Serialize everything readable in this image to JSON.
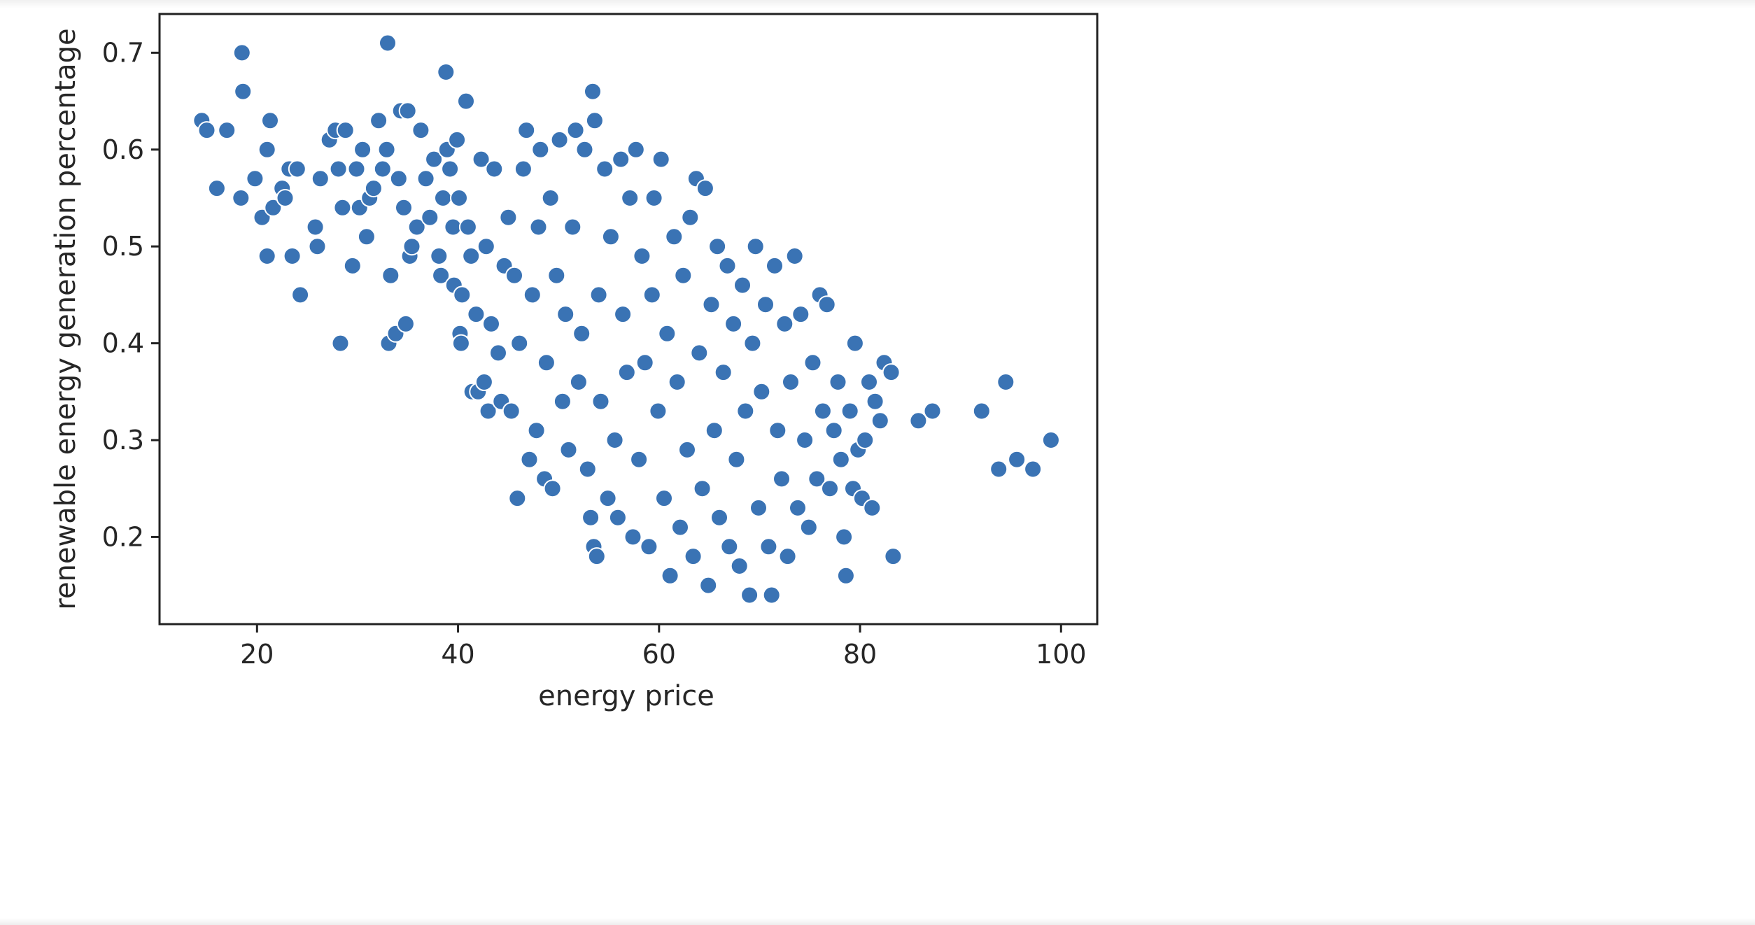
{
  "chart_data": {
    "type": "scatter",
    "xlabel": "energy price",
    "ylabel": "renewable energy generation percentage",
    "xlim": [
      10.3,
      103.6
    ],
    "ylim": [
      0.11,
      0.74
    ],
    "xticks": [
      20,
      40,
      60,
      80,
      100
    ],
    "yticks": [
      0.2,
      0.3,
      0.4,
      0.5,
      0.6,
      0.7
    ],
    "grid": false,
    "legend": "none",
    "marker_color": "#3a73b4",
    "edge_color": "#ffffff",
    "points": [
      [
        14.5,
        0.63
      ],
      [
        15.0,
        0.62
      ],
      [
        16.0,
        0.56
      ],
      [
        17.0,
        0.62
      ],
      [
        18.5,
        0.7
      ],
      [
        18.6,
        0.66
      ],
      [
        18.4,
        0.55
      ],
      [
        19.8,
        0.57
      ],
      [
        20.5,
        0.53
      ],
      [
        21.0,
        0.6
      ],
      [
        21.3,
        0.63
      ],
      [
        21.6,
        0.54
      ],
      [
        21.0,
        0.49
      ],
      [
        22.5,
        0.56
      ],
      [
        22.8,
        0.55
      ],
      [
        23.2,
        0.58
      ],
      [
        23.5,
        0.49
      ],
      [
        24.0,
        0.58
      ],
      [
        24.3,
        0.45
      ],
      [
        25.8,
        0.52
      ],
      [
        26.0,
        0.5
      ],
      [
        26.3,
        0.57
      ],
      [
        27.2,
        0.61
      ],
      [
        27.8,
        0.62
      ],
      [
        28.1,
        0.58
      ],
      [
        28.5,
        0.54
      ],
      [
        28.8,
        0.62
      ],
      [
        28.3,
        0.4
      ],
      [
        29.5,
        0.48
      ],
      [
        29.9,
        0.58
      ],
      [
        30.2,
        0.54
      ],
      [
        30.5,
        0.6
      ],
      [
        30.9,
        0.51
      ],
      [
        31.2,
        0.55
      ],
      [
        31.6,
        0.56
      ],
      [
        32.1,
        0.63
      ],
      [
        32.5,
        0.58
      ],
      [
        32.9,
        0.6
      ],
      [
        33.0,
        0.71
      ],
      [
        33.3,
        0.47
      ],
      [
        33.1,
        0.4
      ],
      [
        33.8,
        0.41
      ],
      [
        34.1,
        0.57
      ],
      [
        34.3,
        0.64
      ],
      [
        34.6,
        0.54
      ],
      [
        34.8,
        0.42
      ],
      [
        35.0,
        0.64
      ],
      [
        35.2,
        0.49
      ],
      [
        35.4,
        0.5
      ],
      [
        35.9,
        0.52
      ],
      [
        36.3,
        0.62
      ],
      [
        36.8,
        0.57
      ],
      [
        37.2,
        0.53
      ],
      [
        37.6,
        0.59
      ],
      [
        38.1,
        0.49
      ],
      [
        38.3,
        0.47
      ],
      [
        38.5,
        0.55
      ],
      [
        38.9,
        0.6
      ],
      [
        38.8,
        0.68
      ],
      [
        39.2,
        0.58
      ],
      [
        39.5,
        0.52
      ],
      [
        39.6,
        0.46
      ],
      [
        39.9,
        0.61
      ],
      [
        40.1,
        0.55
      ],
      [
        40.2,
        0.41
      ],
      [
        40.3,
        0.4
      ],
      [
        40.4,
        0.45
      ],
      [
        40.8,
        0.65
      ],
      [
        41.0,
        0.52
      ],
      [
        41.3,
        0.49
      ],
      [
        41.4,
        0.35
      ],
      [
        41.8,
        0.43
      ],
      [
        42.0,
        0.35
      ],
      [
        42.3,
        0.59
      ],
      [
        42.6,
        0.36
      ],
      [
        42.8,
        0.5
      ],
      [
        43.0,
        0.33
      ],
      [
        43.3,
        0.42
      ],
      [
        43.6,
        0.58
      ],
      [
        44.0,
        0.39
      ],
      [
        44.3,
        0.34
      ],
      [
        44.6,
        0.48
      ],
      [
        45.0,
        0.53
      ],
      [
        45.3,
        0.33
      ],
      [
        45.6,
        0.47
      ],
      [
        45.9,
        0.24
      ],
      [
        46.1,
        0.4
      ],
      [
        46.5,
        0.58
      ],
      [
        46.8,
        0.62
      ],
      [
        47.1,
        0.28
      ],
      [
        47.4,
        0.45
      ],
      [
        47.8,
        0.31
      ],
      [
        48.0,
        0.52
      ],
      [
        48.2,
        0.6
      ],
      [
        48.6,
        0.26
      ],
      [
        48.8,
        0.38
      ],
      [
        49.2,
        0.55
      ],
      [
        49.4,
        0.25
      ],
      [
        49.8,
        0.47
      ],
      [
        50.1,
        0.61
      ],
      [
        50.4,
        0.34
      ],
      [
        50.7,
        0.43
      ],
      [
        51.0,
        0.29
      ],
      [
        51.4,
        0.52
      ],
      [
        51.7,
        0.62
      ],
      [
        52.0,
        0.36
      ],
      [
        52.3,
        0.41
      ],
      [
        52.6,
        0.6
      ],
      [
        52.9,
        0.27
      ],
      [
        53.2,
        0.22
      ],
      [
        53.4,
        0.66
      ],
      [
        53.5,
        0.19
      ],
      [
        53.6,
        0.63
      ],
      [
        53.8,
        0.18
      ],
      [
        54.0,
        0.45
      ],
      [
        54.2,
        0.34
      ],
      [
        54.6,
        0.58
      ],
      [
        54.9,
        0.24
      ],
      [
        55.2,
        0.51
      ],
      [
        55.6,
        0.3
      ],
      [
        55.9,
        0.22
      ],
      [
        56.2,
        0.59
      ],
      [
        56.4,
        0.43
      ],
      [
        56.8,
        0.37
      ],
      [
        57.1,
        0.55
      ],
      [
        57.4,
        0.2
      ],
      [
        57.7,
        0.6
      ],
      [
        58.0,
        0.28
      ],
      [
        58.3,
        0.49
      ],
      [
        58.6,
        0.38
      ],
      [
        59.0,
        0.19
      ],
      [
        59.3,
        0.45
      ],
      [
        59.5,
        0.55
      ],
      [
        59.9,
        0.33
      ],
      [
        60.2,
        0.59
      ],
      [
        60.5,
        0.24
      ],
      [
        60.8,
        0.41
      ],
      [
        61.1,
        0.16
      ],
      [
        61.5,
        0.51
      ],
      [
        61.8,
        0.36
      ],
      [
        62.1,
        0.21
      ],
      [
        62.4,
        0.47
      ],
      [
        62.8,
        0.29
      ],
      [
        63.1,
        0.53
      ],
      [
        63.4,
        0.18
      ],
      [
        63.7,
        0.57
      ],
      [
        64.0,
        0.39
      ],
      [
        64.3,
        0.25
      ],
      [
        64.6,
        0.56
      ],
      [
        64.9,
        0.15
      ],
      [
        65.2,
        0.44
      ],
      [
        65.5,
        0.31
      ],
      [
        65.8,
        0.5
      ],
      [
        66.0,
        0.22
      ],
      [
        66.4,
        0.37
      ],
      [
        66.8,
        0.48
      ],
      [
        67.0,
        0.19
      ],
      [
        67.4,
        0.42
      ],
      [
        67.7,
        0.28
      ],
      [
        68.0,
        0.17
      ],
      [
        68.3,
        0.46
      ],
      [
        68.6,
        0.33
      ],
      [
        69.0,
        0.14
      ],
      [
        69.3,
        0.4
      ],
      [
        69.6,
        0.5
      ],
      [
        69.9,
        0.23
      ],
      [
        70.2,
        0.35
      ],
      [
        70.6,
        0.44
      ],
      [
        70.9,
        0.19
      ],
      [
        71.2,
        0.14
      ],
      [
        71.5,
        0.48
      ],
      [
        71.8,
        0.31
      ],
      [
        72.2,
        0.26
      ],
      [
        72.5,
        0.42
      ],
      [
        72.8,
        0.18
      ],
      [
        73.1,
        0.36
      ],
      [
        73.5,
        0.49
      ],
      [
        73.8,
        0.23
      ],
      [
        74.1,
        0.43
      ],
      [
        74.5,
        0.3
      ],
      [
        74.9,
        0.21
      ],
      [
        75.3,
        0.38
      ],
      [
        75.7,
        0.26
      ],
      [
        76.0,
        0.45
      ],
      [
        76.3,
        0.33
      ],
      [
        76.7,
        0.44
      ],
      [
        77.0,
        0.25
      ],
      [
        77.4,
        0.31
      ],
      [
        77.8,
        0.36
      ],
      [
        78.1,
        0.28
      ],
      [
        78.4,
        0.2
      ],
      [
        78.6,
        0.16
      ],
      [
        79.0,
        0.33
      ],
      [
        79.3,
        0.25
      ],
      [
        79.5,
        0.4
      ],
      [
        79.8,
        0.29
      ],
      [
        80.2,
        0.24
      ],
      [
        80.5,
        0.3
      ],
      [
        80.9,
        0.36
      ],
      [
        81.2,
        0.23
      ],
      [
        81.5,
        0.34
      ],
      [
        82.0,
        0.32
      ],
      [
        82.4,
        0.38
      ],
      [
        83.3,
        0.18
      ],
      [
        83.1,
        0.37
      ],
      [
        85.8,
        0.32
      ],
      [
        87.2,
        0.33
      ],
      [
        92.1,
        0.33
      ],
      [
        93.8,
        0.27
      ],
      [
        94.5,
        0.36
      ],
      [
        95.6,
        0.28
      ],
      [
        97.2,
        0.27
      ],
      [
        99.0,
        0.3
      ]
    ]
  }
}
